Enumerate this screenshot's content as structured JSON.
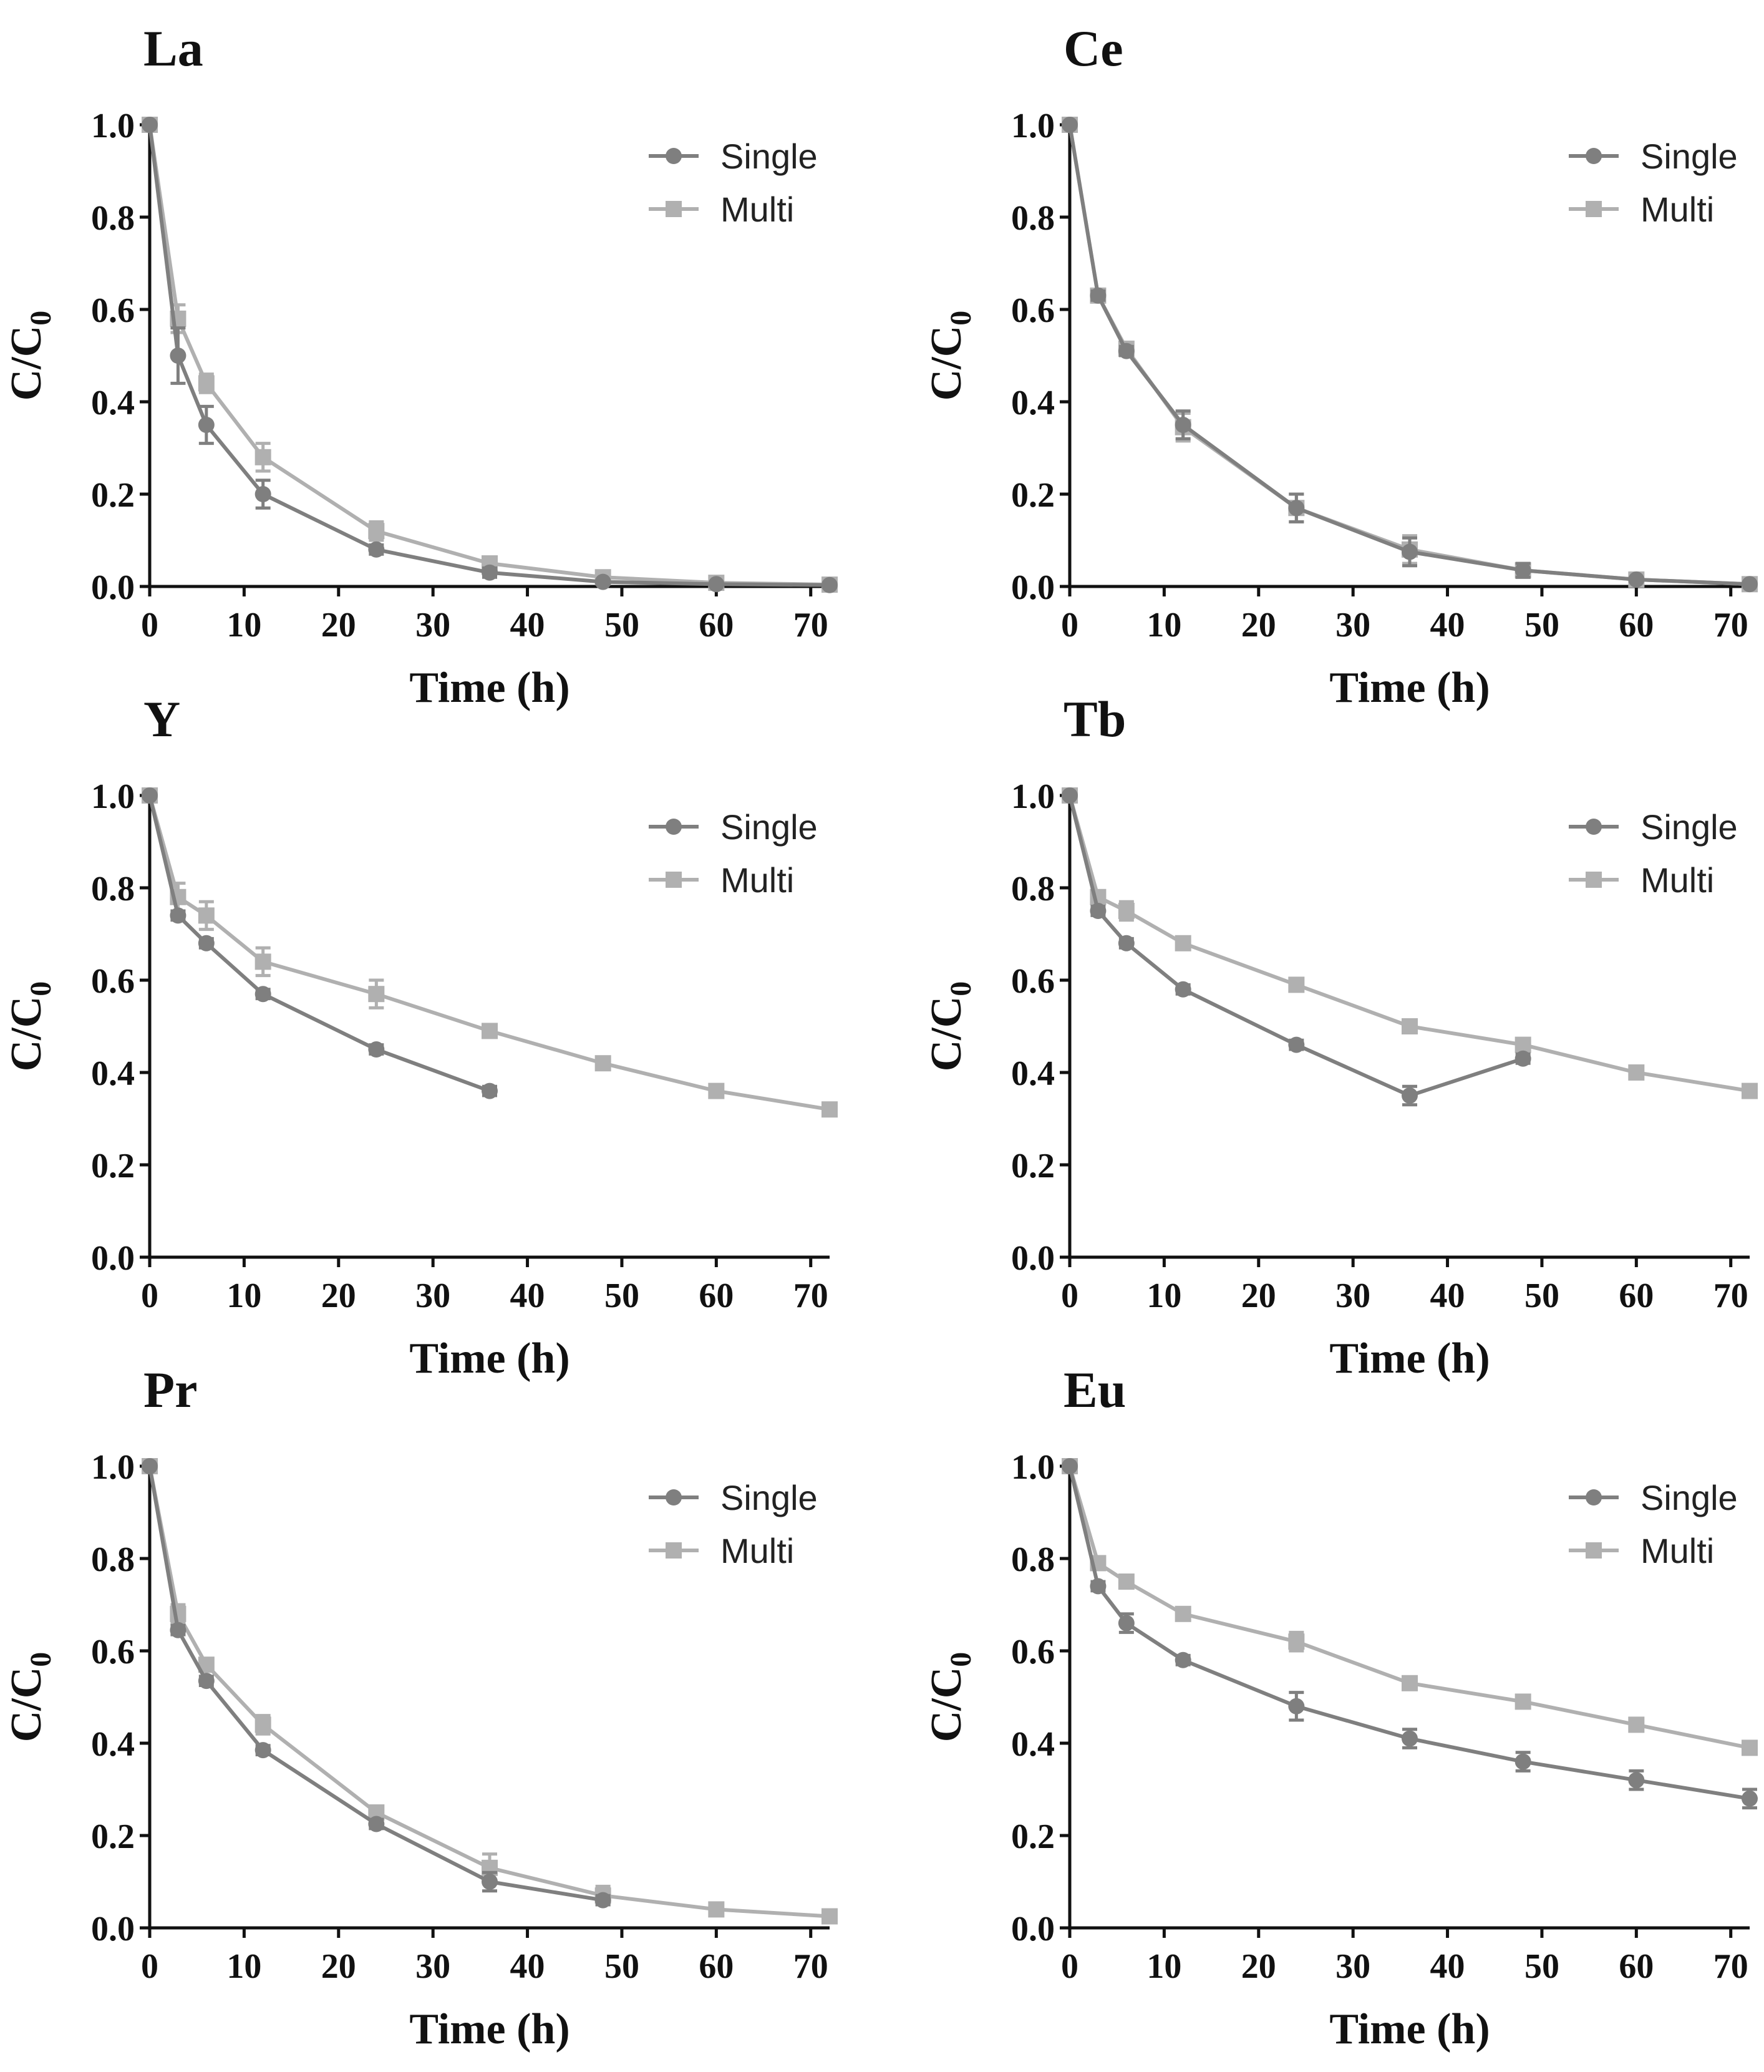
{
  "colors": {
    "single": "#7f7f7f",
    "multi": "#b0b0b0",
    "axis": "#111111"
  },
  "legend": {
    "single": "Single",
    "multi": "Multi"
  },
  "common": {
    "xlabel": "Time (h)",
    "ylabel_main": "C/C",
    "ylabel_sub": "0",
    "xlim": [
      0,
      72
    ],
    "ylim": [
      0,
      1.0
    ],
    "xticks": [
      0,
      10,
      20,
      30,
      40,
      50,
      60,
      70
    ],
    "yticks": [
      "0.0",
      "0.2",
      "0.4",
      "0.6",
      "0.8",
      "1.0"
    ]
  },
  "chart_data": [
    {
      "type": "line",
      "title": "La",
      "xlabel": "Time (h)",
      "ylabel": "C/C0",
      "legend_position": "top-right",
      "series": [
        {
          "name": "Single",
          "marker": "circle",
          "x": [
            0,
            3,
            6,
            12,
            24,
            36,
            48,
            60,
            72
          ],
          "y": [
            1.0,
            0.5,
            0.35,
            0.2,
            0.08,
            0.03,
            0.01,
            0.005,
            0.003
          ],
          "err": [
            0,
            0.06,
            0.04,
            0.03,
            0.01,
            0.01,
            0,
            0,
            0
          ]
        },
        {
          "name": "Multi",
          "marker": "square",
          "x": [
            0,
            3,
            6,
            12,
            24,
            36,
            48,
            60,
            72
          ],
          "y": [
            1.0,
            0.58,
            0.44,
            0.28,
            0.12,
            0.05,
            0.02,
            0.008,
            0.004
          ],
          "err": [
            0,
            0.03,
            0.02,
            0.03,
            0.02,
            0.01,
            0.01,
            0,
            0
          ]
        }
      ]
    },
    {
      "type": "line",
      "title": "Ce",
      "xlabel": "Time (h)",
      "ylabel": "C/C0",
      "legend_position": "top-right",
      "series": [
        {
          "name": "Single",
          "marker": "circle",
          "x": [
            0,
            3,
            6,
            12,
            24,
            36,
            48,
            60,
            72
          ],
          "y": [
            1.0,
            0.63,
            0.51,
            0.35,
            0.17,
            0.075,
            0.035,
            0.015,
            0.005
          ],
          "err": [
            0,
            0.01,
            0.01,
            0.03,
            0.03,
            0.03,
            0.015,
            0,
            0
          ]
        },
        {
          "name": "Multi",
          "marker": "square",
          "x": [
            0,
            3,
            6,
            12,
            24,
            36,
            48,
            60,
            72
          ],
          "y": [
            1.0,
            0.63,
            0.515,
            0.345,
            0.17,
            0.08,
            0.035,
            0.015,
            0.005
          ],
          "err": [
            0,
            0.01,
            0.01,
            0.03,
            0.03,
            0.03,
            0.015,
            0,
            0
          ]
        }
      ]
    },
    {
      "type": "line",
      "title": "Y",
      "xlabel": "Time (h)",
      "ylabel": "C/C0",
      "legend_position": "top-right",
      "series": [
        {
          "name": "Single",
          "marker": "circle",
          "x": [
            0,
            3,
            6,
            12,
            24,
            36
          ],
          "y": [
            1.0,
            0.74,
            0.68,
            0.57,
            0.45,
            0.36
          ],
          "err": [
            0,
            0.01,
            0.01,
            0.01,
            0.01,
            0.01
          ]
        },
        {
          "name": "Multi",
          "marker": "square",
          "x": [
            0,
            3,
            6,
            12,
            24,
            36,
            48,
            60,
            72
          ],
          "y": [
            1.0,
            0.78,
            0.74,
            0.64,
            0.57,
            0.49,
            0.42,
            0.36,
            0.32
          ],
          "err": [
            0,
            0.03,
            0.03,
            0.03,
            0.03,
            0.01,
            0.01,
            0.01,
            0.01
          ]
        }
      ]
    },
    {
      "type": "line",
      "title": "Tb",
      "xlabel": "Time (h)",
      "ylabel": "C/C0",
      "legend_position": "top-right",
      "series": [
        {
          "name": "Single",
          "marker": "circle",
          "x": [
            0,
            3,
            6,
            12,
            24,
            36,
            48
          ],
          "y": [
            1.0,
            0.75,
            0.68,
            0.58,
            0.46,
            0.35,
            0.43
          ],
          "err": [
            0,
            0.01,
            0.01,
            0.01,
            0.01,
            0.02,
            0.01
          ]
        },
        {
          "name": "Multi",
          "marker": "square",
          "x": [
            0,
            3,
            6,
            12,
            24,
            36,
            48,
            60,
            72
          ],
          "y": [
            1.0,
            0.78,
            0.75,
            0.68,
            0.59,
            0.5,
            0.46,
            0.4,
            0.36
          ],
          "err": [
            0,
            0.01,
            0.02,
            0.01,
            0.01,
            0.01,
            0.01,
            0.01,
            0.01
          ]
        }
      ]
    },
    {
      "type": "line",
      "title": "Pr",
      "xlabel": "Time (h)",
      "ylabel": "C/C0",
      "legend_position": "top-right",
      "series": [
        {
          "name": "Single",
          "marker": "circle",
          "x": [
            0,
            3,
            6,
            12,
            24,
            36,
            48
          ],
          "y": [
            1.0,
            0.645,
            0.535,
            0.385,
            0.225,
            0.1,
            0.06
          ],
          "err": [
            0,
            0.01,
            0.01,
            0.01,
            0.01,
            0.02,
            0.01
          ]
        },
        {
          "name": "Multi",
          "marker": "square",
          "x": [
            0,
            3,
            6,
            12,
            24,
            36,
            48,
            60,
            72
          ],
          "y": [
            1.0,
            0.68,
            0.57,
            0.44,
            0.25,
            0.13,
            0.07,
            0.04,
            0.025
          ],
          "err": [
            0,
            0.02,
            0.01,
            0.02,
            0.01,
            0.03,
            0.02,
            0.01,
            0.01
          ]
        }
      ]
    },
    {
      "type": "line",
      "title": "Eu",
      "xlabel": "Time (h)",
      "ylabel": "C/C0",
      "legend_position": "top-right",
      "series": [
        {
          "name": "Single",
          "marker": "circle",
          "x": [
            0,
            3,
            6,
            12,
            24,
            36,
            48,
            60,
            72
          ],
          "y": [
            1.0,
            0.74,
            0.66,
            0.58,
            0.48,
            0.41,
            0.36,
            0.32,
            0.28
          ],
          "err": [
            0,
            0.01,
            0.02,
            0.01,
            0.03,
            0.02,
            0.02,
            0.02,
            0.02
          ]
        },
        {
          "name": "Multi",
          "marker": "square",
          "x": [
            0,
            3,
            6,
            12,
            24,
            36,
            48,
            60,
            72
          ],
          "y": [
            1.0,
            0.79,
            0.75,
            0.68,
            0.62,
            0.53,
            0.49,
            0.44,
            0.39
          ],
          "err": [
            0,
            0.01,
            0.01,
            0.01,
            0.02,
            0.01,
            0.01,
            0.01,
            0.01
          ]
        }
      ]
    }
  ]
}
